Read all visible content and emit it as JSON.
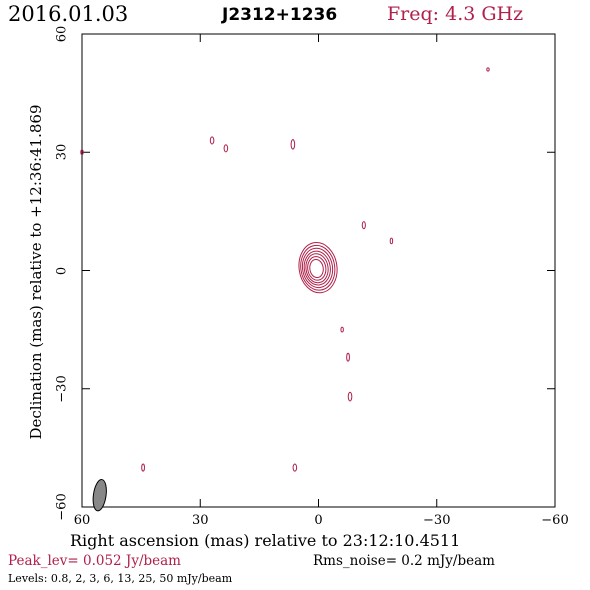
{
  "header": {
    "date": "2016.01.03",
    "source": "J2312+1236",
    "freq": "Freq: 4.3 GHz"
  },
  "footer": {
    "peak": "Peak_lev=  0.052 Jy/beam",
    "rms": "Rms_noise=   0.2 mJy/beam",
    "levels": "Levels: 0.8,    2,    3,    6,   13,   25,   50 mJy/beam"
  },
  "colors": {
    "contour": "#b0204a",
    "axis": "#000000",
    "beam": "#888888"
  },
  "chart_data": {
    "type": "contour",
    "xlabel": "Right ascension (mas) relative to 23:12:10.4511",
    "ylabel": "Declination (mas) relative to +12:36:41.869",
    "xlim": [
      60,
      -60
    ],
    "ylim": [
      -60,
      60
    ],
    "xticks": [
      60,
      30,
      0,
      -30,
      -60
    ],
    "yticks": [
      -60,
      -30,
      0,
      30,
      60
    ],
    "xtick_labels": [
      "60",
      "30",
      "0",
      "−30",
      "−60"
    ],
    "ytick_labels": [
      "−60",
      "−30",
      "0",
      "30",
      "60"
    ],
    "contour_levels_mJy": [
      0.8,
      2,
      3,
      6,
      13,
      25,
      50
    ],
    "core": {
      "x": 0.5,
      "y": 0.5,
      "rx": [
        1.7,
        2.3,
        2.8,
        3.3,
        3.8,
        4.3,
        4.8
      ],
      "ry": [
        2.3,
        3.0,
        3.7,
        4.3,
        5.0,
        5.7,
        6.4
      ]
    },
    "components": [
      {
        "x": -43.0,
        "y": 51.0,
        "rx": 0.25,
        "ry": 0.4
      },
      {
        "x": 27.0,
        "y": 33.0,
        "rx": 0.45,
        "ry": 0.9
      },
      {
        "x": 23.5,
        "y": 31.0,
        "rx": 0.45,
        "ry": 0.9
      },
      {
        "x": 6.5,
        "y": 32.0,
        "rx": 0.45,
        "ry": 1.2
      },
      {
        "x": 60.0,
        "y": 30.0,
        "rx": 0.3,
        "ry": 0.6
      },
      {
        "x": -11.5,
        "y": 11.5,
        "rx": 0.4,
        "ry": 0.9
      },
      {
        "x": -18.5,
        "y": 7.5,
        "rx": 0.3,
        "ry": 0.7
      },
      {
        "x": -6.0,
        "y": -15.0,
        "rx": 0.3,
        "ry": 0.6
      },
      {
        "x": -7.5,
        "y": -22.0,
        "rx": 0.35,
        "ry": 1.0
      },
      {
        "x": -8.0,
        "y": -32.0,
        "rx": 0.45,
        "ry": 1.1
      },
      {
        "x": 44.5,
        "y": -50.0,
        "rx": 0.35,
        "ry": 0.9
      },
      {
        "x": 6.0,
        "y": -50.0,
        "rx": 0.45,
        "ry": 0.9
      }
    ],
    "beam": {
      "x": 55.5,
      "y": -57.0,
      "major": 4.0,
      "minor": 1.6,
      "pa_deg": 8
    }
  }
}
